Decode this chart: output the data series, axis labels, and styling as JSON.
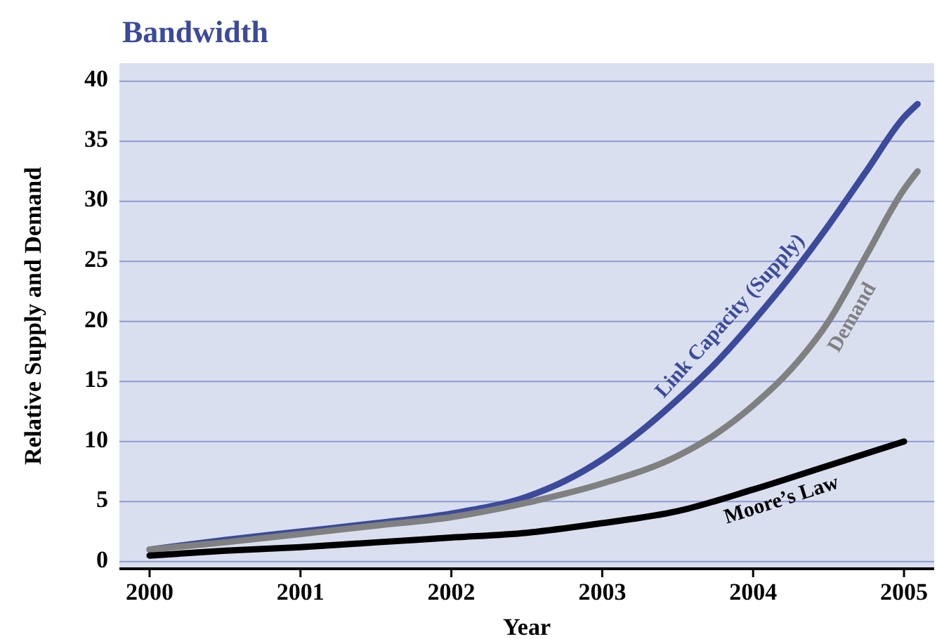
{
  "chart_data": {
    "type": "line",
    "title": "Bandwidth",
    "xlabel": "Year",
    "ylabel": "Relative Supply and Demand",
    "xlim": [
      1999.8,
      2005.2
    ],
    "xticks": [
      2000,
      2001,
      2002,
      2003,
      2004,
      2005
    ],
    "ylim": [
      -0.6,
      41.5
    ],
    "yticks": [
      0,
      5,
      10,
      15,
      20,
      25,
      30,
      35,
      40
    ],
    "grid": "y",
    "series": [
      {
        "name": "Link Capacity (Supply)",
        "color": "#3b4a9b",
        "x": [
          2000,
          2000.5,
          2001,
          2001.5,
          2002,
          2002.5,
          2002.75,
          2003,
          2003.25,
          2003.5,
          2003.75,
          2004,
          2004.25,
          2004.5,
          2004.75,
          2005,
          2005.09
        ],
        "values": [
          1,
          1.8,
          2.5,
          3.2,
          4,
          5.4,
          6.7,
          8.5,
          10.8,
          13.5,
          16.5,
          20,
          23.8,
          28,
          32.5,
          37,
          38.1
        ]
      },
      {
        "name": "Demand",
        "color": "#808080",
        "x": [
          2000,
          2000.5,
          2001,
          2001.5,
          2002,
          2002.5,
          2003,
          2003.5,
          2003.75,
          2004,
          2004.25,
          2004.5,
          2004.75,
          2005,
          2005.09
        ],
        "values": [
          1,
          1.6,
          2.3,
          3,
          3.7,
          4.9,
          6.5,
          8.8,
          10.6,
          13,
          16,
          20,
          25.5,
          31,
          32.5
        ]
      },
      {
        "name": "Moore’s Law",
        "color": "#000000",
        "x": [
          2000,
          2000.5,
          2001,
          2001.5,
          2002,
          2002.5,
          2003,
          2003.5,
          2004,
          2004.5,
          2005
        ],
        "values": [
          0.5,
          0.9,
          1.2,
          1.6,
          2,
          2.4,
          3.2,
          4.2,
          6,
          8,
          10
        ]
      }
    ]
  }
}
